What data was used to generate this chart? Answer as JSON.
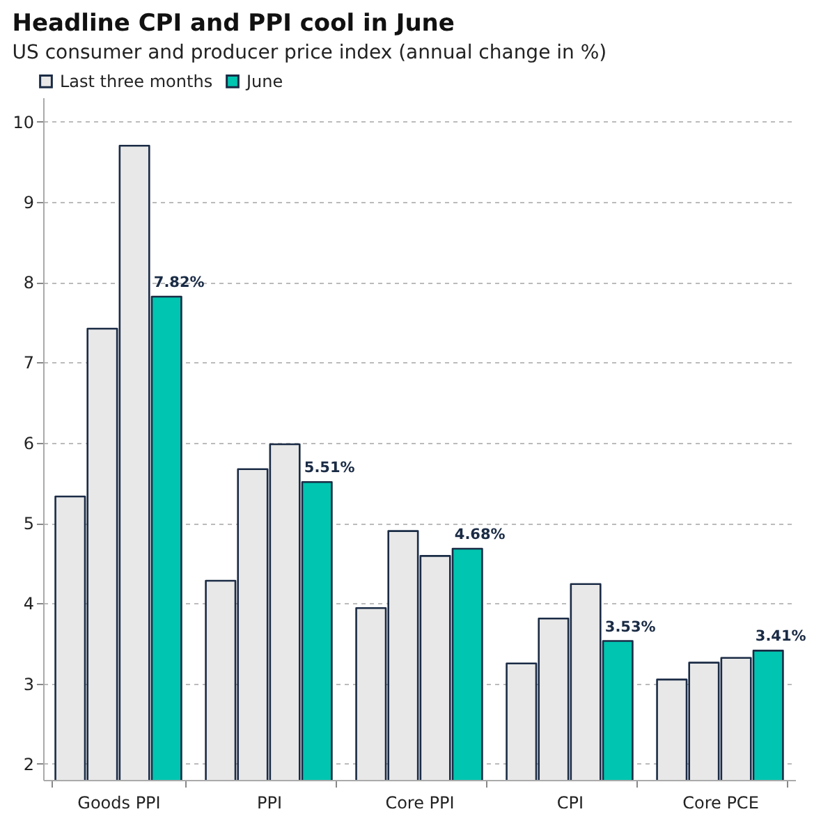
{
  "chart_data": {
    "type": "bar",
    "title": "Headline CPI and PPI cool in June",
    "subtitle": "US consumer and producer price index (annual change in %)",
    "categories": [
      "Goods PPI",
      "PPI",
      "Core PPI",
      "CPI",
      "Core PCE"
    ],
    "series": [
      {
        "name": "Last three months",
        "color": "#e8e8e8",
        "values": [
          5.33,
          4.28,
          3.94,
          3.25,
          3.05
        ]
      },
      {
        "color": "#e8e8e8",
        "values": [
          7.42,
          5.67,
          4.9,
          3.81,
          3.26
        ]
      },
      {
        "color": "#e8e8e8",
        "values": [
          9.7,
          5.98,
          4.59,
          4.24,
          3.32
        ]
      },
      {
        "name": "June",
        "color": "#00c5b0",
        "values": [
          7.82,
          5.51,
          4.68,
          3.53,
          3.41
        ],
        "value_labels": [
          "7.82%",
          "5.51%",
          "4.68%",
          "3.53%",
          "3.41%"
        ]
      }
    ],
    "ylim": [
      1.8,
      10.3
    ],
    "yticks": [
      2,
      3,
      4,
      5,
      6,
      7,
      8,
      9,
      10
    ],
    "grid": "y",
    "legend": "top left"
  }
}
